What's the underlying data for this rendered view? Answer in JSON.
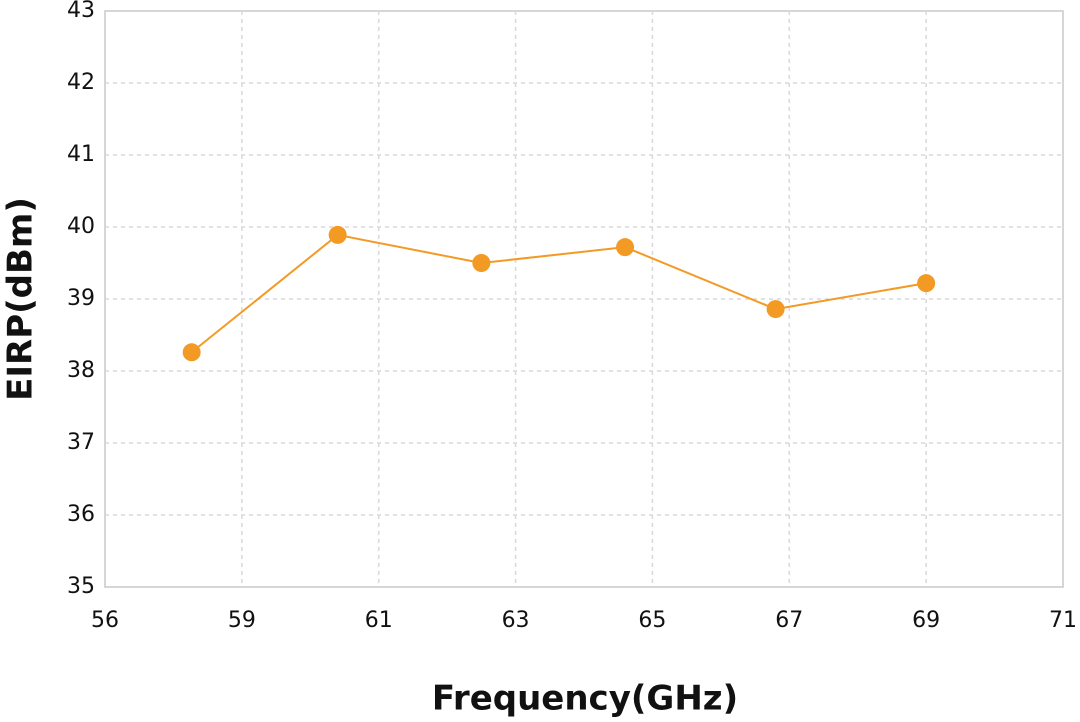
{
  "chart_data": {
    "type": "line",
    "xlabel": "Frequency(GHz)",
    "ylabel": "EIRP(dBm)",
    "x": [
      57.9,
      60.4,
      62.5,
      64.6,
      66.8,
      69.0
    ],
    "series": [
      {
        "color": "#f39a25",
        "values": [
          38.26,
          39.89,
          39.5,
          39.72,
          38.86,
          39.22
        ]
      }
    ],
    "xlim": [
      56,
      71
    ],
    "xticks": [
      56,
      59,
      61,
      63,
      65,
      67,
      69,
      71
    ],
    "ylim": [
      35,
      43
    ],
    "yticks": [
      35,
      36,
      37,
      38,
      39,
      40,
      41,
      42,
      43
    ],
    "grid": true
  }
}
